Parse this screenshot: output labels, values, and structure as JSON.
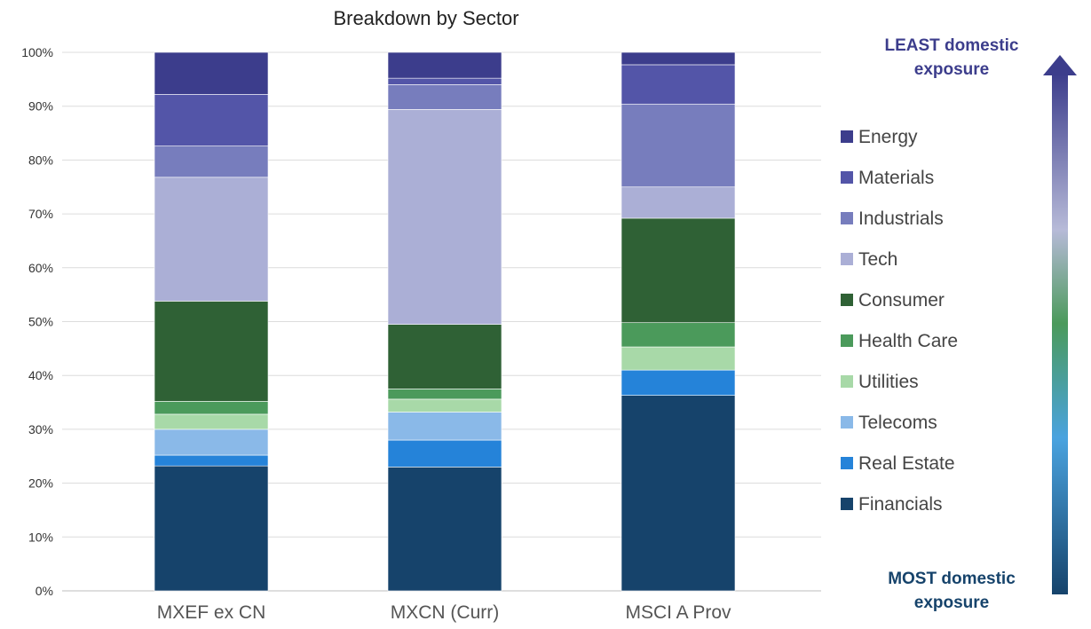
{
  "chart_data": {
    "type": "bar",
    "stacked": true,
    "title": "Breakdown by Sector",
    "xlabel": "",
    "ylabel": "",
    "ylim": [
      0,
      100
    ],
    "yticks": [
      "0%",
      "10%",
      "20%",
      "30%",
      "40%",
      "50%",
      "60%",
      "70%",
      "80%",
      "90%",
      "100%"
    ],
    "grid": true,
    "legend_position": "right",
    "categories": [
      "MXEF ex CN",
      "MXCN (Curr)",
      "MSCI A Prov"
    ],
    "series": [
      {
        "name": "Financials",
        "color": "#16436b",
        "values": [
          23.2,
          23.0,
          36.3
        ]
      },
      {
        "name": "Real Estate",
        "color": "#2583d9",
        "values": [
          2.0,
          5.0,
          4.7
        ]
      },
      {
        "name": "Telecoms",
        "color": "#8ab9e8",
        "values": [
          4.8,
          5.2,
          0.0
        ]
      },
      {
        "name": "Utilities",
        "color": "#a8d9a8",
        "values": [
          2.8,
          2.4,
          4.3
        ]
      },
      {
        "name": "Health Care",
        "color": "#4b9a5b",
        "values": [
          2.4,
          1.9,
          4.5
        ]
      },
      {
        "name": "Consumer",
        "color": "#2f6135",
        "values": [
          18.6,
          12.0,
          19.4
        ]
      },
      {
        "name": "Tech",
        "color": "#abafd6",
        "values": [
          23.0,
          39.9,
          5.8
        ]
      },
      {
        "name": "Industrials",
        "color": "#777dbd",
        "values": [
          5.8,
          4.6,
          15.4
        ]
      },
      {
        "name": "Materials",
        "color": "#5355a8",
        "values": [
          9.6,
          1.2,
          7.3
        ]
      },
      {
        "name": "Energy",
        "color": "#3c3d8c",
        "values": [
          7.8,
          4.8,
          2.3
        ]
      }
    ],
    "annotations": {
      "top": [
        "LEAST domestic",
        "exposure"
      ],
      "bottom": [
        "MOST domestic",
        "exposure"
      ],
      "top_color": "#3c3d8c",
      "bottom_color": "#16436b"
    }
  }
}
